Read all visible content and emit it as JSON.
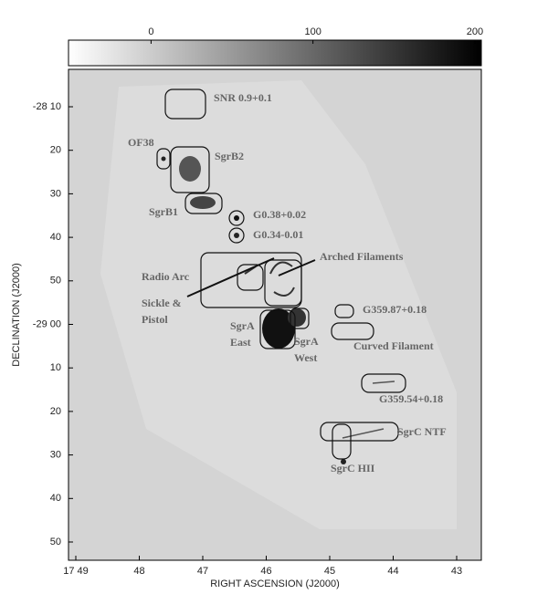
{
  "colorbar": {
    "range": [
      -51,
      204
    ],
    "ticks": [
      0,
      100,
      200
    ]
  },
  "axes": {
    "y_title": "DECLINATION (J2000)",
    "x_title": "RIGHT ASCENSION (J2000)",
    "y_ticks": [
      "-28 10",
      "20",
      "30",
      "40",
      "50",
      "-29 00",
      "10",
      "20",
      "30",
      "40",
      "50"
    ],
    "x_ticks": [
      "17 49",
      "48",
      "47",
      "46",
      "45",
      "44",
      "43"
    ]
  },
  "labels": [
    {
      "lines": [
        "SNR 0.9+0.1"
      ]
    },
    {
      "lines": [
        "OF38"
      ]
    },
    {
      "lines": [
        "SgrB2"
      ]
    },
    {
      "lines": [
        "SgrB1"
      ]
    },
    {
      "lines": [
        "G0.38+0.02"
      ]
    },
    {
      "lines": [
        "G0.34-0.01"
      ]
    },
    {
      "lines": [
        "Arched Filaments"
      ]
    },
    {
      "lines": [
        "Radio Arc"
      ]
    },
    {
      "lines": [
        "Sickle &",
        "Pistol"
      ]
    },
    {
      "lines": [
        "SgrA",
        "East"
      ]
    },
    {
      "lines": [
        "SgrA",
        "West"
      ]
    },
    {
      "lines": [
        "G359.87+0.18"
      ]
    },
    {
      "lines": [
        "Curved Filament"
      ]
    },
    {
      "lines": [
        "G359.54+0.18"
      ]
    },
    {
      "lines": [
        "SgrC NTF"
      ]
    },
    {
      "lines": [
        "SgrC HII"
      ]
    }
  ]
}
